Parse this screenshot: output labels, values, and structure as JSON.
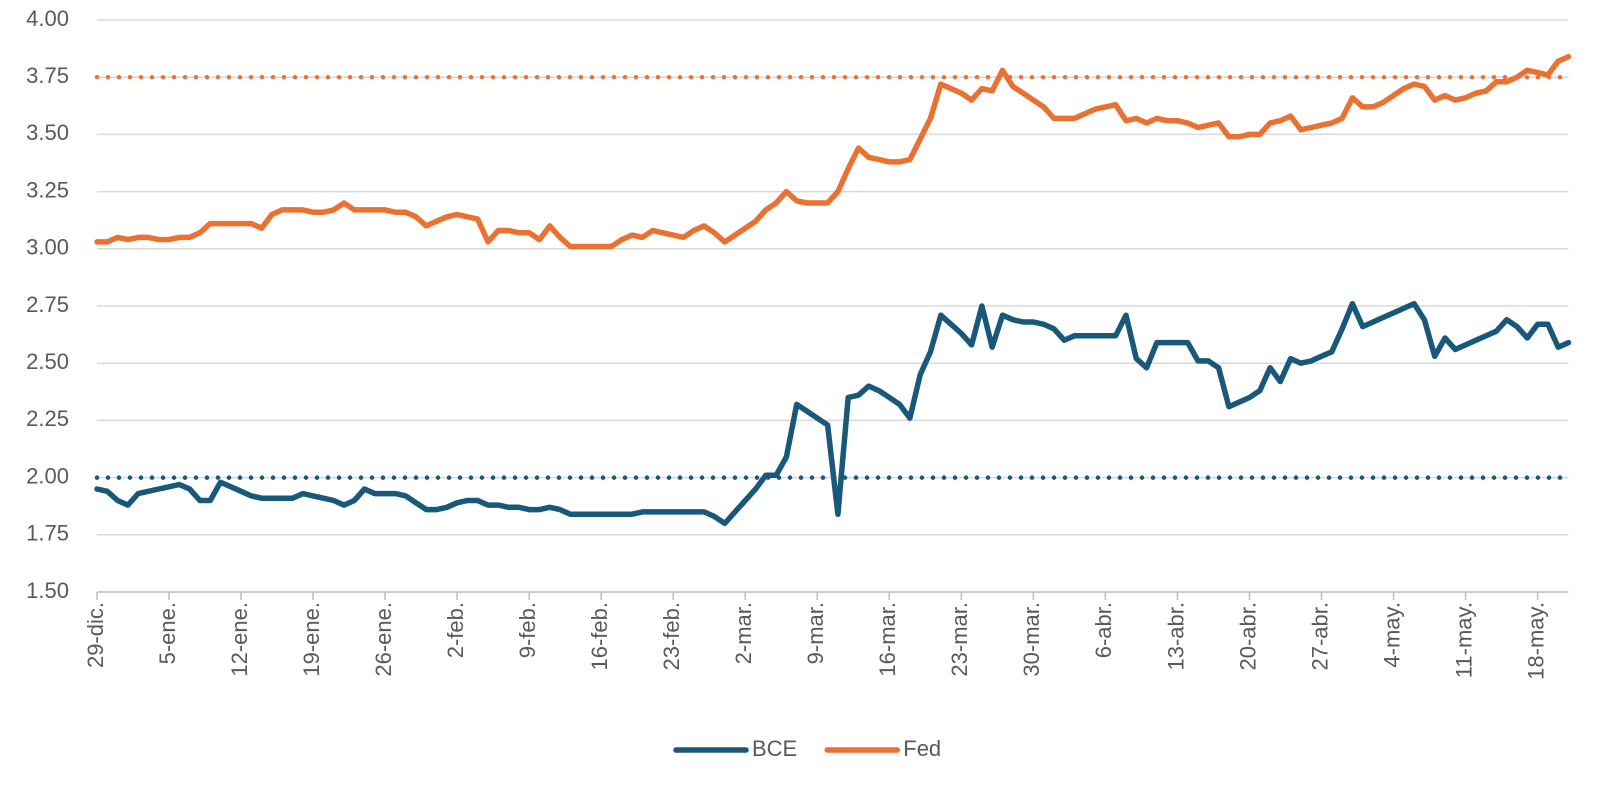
{
  "chart_data": {
    "type": "line",
    "categories": [
      "29-dic.",
      null,
      null,
      null,
      null,
      null,
      null,
      "5-ene.",
      null,
      null,
      null,
      null,
      null,
      null,
      "12-ene.",
      null,
      null,
      null,
      null,
      null,
      null,
      "19-ene.",
      null,
      null,
      null,
      null,
      null,
      null,
      "26-ene.",
      null,
      null,
      null,
      null,
      null,
      null,
      "2-feb.",
      null,
      null,
      null,
      null,
      null,
      null,
      "9-feb.",
      null,
      null,
      null,
      null,
      null,
      null,
      "16-feb.",
      null,
      null,
      null,
      null,
      null,
      null,
      "23-feb.",
      null,
      null,
      null,
      null,
      null,
      null,
      "2-mar.",
      null,
      null,
      null,
      null,
      null,
      null,
      "9-mar.",
      null,
      null,
      null,
      null,
      null,
      null,
      "16-mar.",
      null,
      null,
      null,
      null,
      null,
      null,
      "23-mar.",
      null,
      null,
      null,
      null,
      null,
      null,
      "30-mar.",
      null,
      null,
      null,
      null,
      null,
      null,
      "6-abr.",
      null,
      null,
      null,
      null,
      null,
      null,
      "13-abr.",
      null,
      null,
      null,
      null,
      null,
      null,
      "20-abr.",
      null,
      null,
      null,
      null,
      null,
      null,
      "27-abr.",
      null,
      null,
      null,
      null,
      null,
      null,
      "4-may.",
      null,
      null,
      null,
      null,
      null,
      null,
      "11-may.",
      null,
      null,
      null,
      null,
      null,
      null,
      "18-may.",
      null,
      null,
      null
    ],
    "series": [
      {
        "name": "BCE",
        "color": "#18587a",
        "values": [
          1.95,
          1.94,
          1.9,
          1.88,
          1.93,
          1.94,
          1.95,
          1.96,
          1.97,
          1.95,
          1.9,
          1.9,
          1.98,
          1.96,
          1.94,
          1.92,
          1.91,
          1.91,
          1.91,
          1.91,
          1.93,
          1.92,
          1.91,
          1.9,
          1.88,
          1.9,
          1.95,
          1.93,
          1.93,
          1.93,
          1.92,
          1.89,
          1.86,
          1.86,
          1.87,
          1.89,
          1.9,
          1.9,
          1.88,
          1.88,
          1.87,
          1.87,
          1.86,
          1.86,
          1.87,
          1.86,
          1.84,
          1.84,
          1.84,
          1.84,
          1.84,
          1.84,
          1.84,
          1.85,
          1.85,
          1.85,
          1.85,
          1.85,
          1.85,
          1.85,
          1.83,
          1.8,
          1.85,
          1.9,
          1.95,
          2.01,
          2.01,
          2.09,
          2.32,
          2.29,
          2.26,
          2.23,
          1.84,
          2.35,
          2.36,
          2.4,
          2.38,
          2.35,
          2.32,
          2.26,
          2.45,
          2.55,
          2.71,
          2.67,
          2.63,
          2.58,
          2.75,
          2.57,
          2.71,
          2.69,
          2.68,
          2.68,
          2.67,
          2.65,
          2.6,
          2.62,
          2.62,
          2.62,
          2.62,
          2.62,
          2.71,
          2.52,
          2.48,
          2.59,
          2.59,
          2.59,
          2.59,
          2.51,
          2.51,
          2.48,
          2.31,
          2.33,
          2.35,
          2.38,
          2.48,
          2.42,
          2.52,
          2.5,
          2.51,
          2.53,
          2.55,
          2.65,
          2.76,
          2.66,
          2.68,
          2.7,
          2.72,
          2.74,
          2.76,
          2.69,
          2.53,
          2.61,
          2.56,
          2.58,
          2.6,
          2.62,
          2.64,
          2.69,
          2.66,
          2.61,
          2.67,
          2.67,
          2.57,
          2.59
        ]
      },
      {
        "name": "Fed",
        "color": "#e97132",
        "values": [
          3.03,
          3.03,
          3.05,
          3.04,
          3.05,
          3.05,
          3.04,
          3.04,
          3.05,
          3.05,
          3.07,
          3.11,
          3.11,
          3.11,
          3.11,
          3.11,
          3.09,
          3.15,
          3.17,
          3.17,
          3.17,
          3.16,
          3.16,
          3.17,
          3.2,
          3.17,
          3.17,
          3.17,
          3.17,
          3.16,
          3.16,
          3.14,
          3.1,
          3.12,
          3.14,
          3.15,
          3.14,
          3.13,
          3.03,
          3.08,
          3.08,
          3.07,
          3.07,
          3.04,
          3.1,
          3.05,
          3.01,
          3.01,
          3.01,
          3.01,
          3.01,
          3.04,
          3.06,
          3.05,
          3.08,
          3.07,
          3.06,
          3.05,
          3.08,
          3.1,
          3.07,
          3.03,
          3.06,
          3.09,
          3.12,
          3.17,
          3.2,
          3.25,
          3.21,
          3.2,
          3.2,
          3.2,
          3.25,
          3.35,
          3.44,
          3.4,
          3.39,
          3.38,
          3.38,
          3.39,
          3.48,
          3.57,
          3.72,
          3.7,
          3.68,
          3.65,
          3.7,
          3.69,
          3.78,
          3.71,
          3.68,
          3.65,
          3.62,
          3.57,
          3.57,
          3.57,
          3.59,
          3.61,
          3.62,
          3.63,
          3.56,
          3.57,
          3.55,
          3.57,
          3.56,
          3.56,
          3.55,
          3.53,
          3.54,
          3.55,
          3.49,
          3.49,
          3.5,
          3.5,
          3.55,
          3.56,
          3.58,
          3.52,
          3.53,
          3.54,
          3.55,
          3.57,
          3.66,
          3.62,
          3.62,
          3.64,
          3.67,
          3.7,
          3.72,
          3.71,
          3.65,
          3.67,
          3.65,
          3.66,
          3.68,
          3.69,
          3.73,
          3.73,
          3.75,
          3.78,
          3.77,
          3.76,
          3.82,
          3.84
        ]
      }
    ],
    "reference_lines": [
      {
        "value": 3.75,
        "color": "#e97132"
      },
      {
        "value": 2.0,
        "color": "#18587a"
      }
    ],
    "ylim": [
      1.5,
      4.0
    ],
    "yticks": [
      {
        "value": 1.5,
        "label": "1.50"
      },
      {
        "value": 1.75,
        "label": "1.75"
      },
      {
        "value": 2.0,
        "label": "2.00"
      },
      {
        "value": 2.25,
        "label": "2.25"
      },
      {
        "value": 2.5,
        "label": "2.50"
      },
      {
        "value": 2.75,
        "label": "2.75"
      },
      {
        "value": 3.0,
        "label": "3.00"
      },
      {
        "value": 3.25,
        "label": "3.25"
      },
      {
        "value": 3.5,
        "label": "3.50"
      },
      {
        "value": 3.75,
        "label": "3.75"
      },
      {
        "value": 4.0,
        "label": "4.00"
      }
    ],
    "grid": true,
    "legend": "bottom"
  }
}
